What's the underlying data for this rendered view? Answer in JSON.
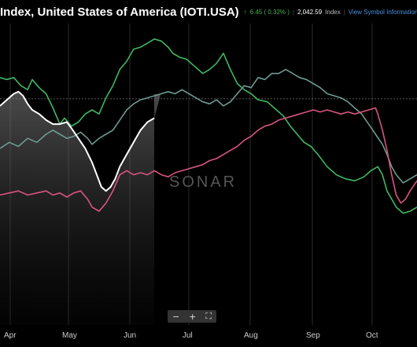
{
  "header": {
    "title": "Index, United States of America (IOTI.USA)",
    "change": "6.45 ( 0.32% )",
    "value": "2,042.59",
    "unit": "Index",
    "link": "View Symbol Information"
  },
  "watermark": "SONAR",
  "zoom": {
    "minus": "−",
    "plus": "+",
    "fit": "⛶"
  },
  "colors": {
    "green": "#3fb860",
    "teal": "#6e9a92",
    "pink": "#d9547e",
    "white": "#ffffff",
    "grid": "#2a2a2a",
    "reference": "#777777"
  },
  "chart_data": {
    "type": "line",
    "x_ticks": [
      "Apr",
      "May",
      "Jun",
      "Jul",
      "Aug",
      "Sep",
      "Oct"
    ],
    "y_axis": {
      "visible": false,
      "normalized_range": [
        0,
        100
      ]
    },
    "note_reference": "dashed horizontal reference line",
    "shaded_region": {
      "from": "start",
      "to": "mid-Jun",
      "series": "white"
    },
    "series": [
      {
        "color": "green",
        "values": [
          [
            0,
            78
          ],
          [
            3,
            77
          ],
          [
            6,
            78
          ],
          [
            9,
            74
          ],
          [
            12,
            72
          ],
          [
            14,
            77
          ],
          [
            17,
            73
          ],
          [
            20,
            70
          ],
          [
            23,
            63
          ],
          [
            26,
            55
          ],
          [
            28,
            58
          ],
          [
            31,
            54
          ],
          [
            34,
            56
          ],
          [
            37,
            60
          ],
          [
            40,
            62
          ],
          [
            43,
            60
          ],
          [
            46,
            68
          ],
          [
            49,
            74
          ],
          [
            52,
            82
          ],
          [
            55,
            86
          ],
          [
            58,
            92
          ],
          [
            61,
            93
          ],
          [
            64,
            95
          ],
          [
            67,
            97
          ],
          [
            70,
            96
          ],
          [
            73,
            93
          ],
          [
            75,
            90
          ],
          [
            78,
            88
          ],
          [
            81,
            87
          ],
          [
            84,
            84
          ],
          [
            86,
            82
          ],
          [
            88,
            80
          ],
          [
            91,
            82
          ],
          [
            94,
            85
          ],
          [
            97,
            90
          ],
          [
            100,
            82
          ],
          [
            103,
            75
          ],
          [
            106,
            72
          ],
          [
            109,
            70
          ],
          [
            112,
            67
          ],
          [
            116,
            66
          ],
          [
            120,
            62
          ],
          [
            123,
            59
          ],
          [
            126,
            54
          ],
          [
            129,
            50
          ],
          [
            132,
            46
          ],
          [
            135,
            44
          ],
          [
            138,
            40
          ],
          [
            142,
            34
          ],
          [
            146,
            30
          ],
          [
            150,
            28
          ],
          [
            154,
            27
          ],
          [
            158,
            29
          ],
          [
            161,
            32
          ],
          [
            164,
            34
          ],
          [
            166,
            30
          ],
          [
            168,
            22
          ],
          [
            170,
            18
          ],
          [
            172,
            14
          ],
          [
            175,
            11
          ],
          [
            178,
            12
          ],
          [
            181,
            14
          ]
        ]
      },
      {
        "color": "teal",
        "values": [
          [
            0,
            43
          ],
          [
            4,
            46
          ],
          [
            8,
            44
          ],
          [
            12,
            48
          ],
          [
            16,
            46
          ],
          [
            20,
            50
          ],
          [
            23,
            52
          ],
          [
            26,
            50
          ],
          [
            29,
            48
          ],
          [
            32,
            49
          ],
          [
            35,
            51
          ],
          [
            38,
            48
          ],
          [
            40,
            45
          ],
          [
            43,
            48
          ],
          [
            46,
            50
          ],
          [
            49,
            52
          ],
          [
            52,
            57
          ],
          [
            55,
            62
          ],
          [
            58,
            65
          ],
          [
            61,
            67
          ],
          [
            64,
            68
          ],
          [
            67,
            69
          ],
          [
            70,
            70
          ],
          [
            73,
            71
          ],
          [
            76,
            70
          ],
          [
            79,
            72
          ],
          [
            82,
            70
          ],
          [
            85,
            68
          ],
          [
            88,
            66
          ],
          [
            91,
            65
          ],
          [
            94,
            67
          ],
          [
            97,
            64
          ],
          [
            100,
            66
          ],
          [
            103,
            70
          ],
          [
            106,
            74
          ],
          [
            109,
            73
          ],
          [
            112,
            78
          ],
          [
            115,
            77
          ],
          [
            118,
            80
          ],
          [
            121,
            80
          ],
          [
            124,
            82
          ],
          [
            127,
            80
          ],
          [
            130,
            78
          ],
          [
            133,
            77
          ],
          [
            136,
            75
          ],
          [
            139,
            73
          ],
          [
            142,
            70
          ],
          [
            145,
            69
          ],
          [
            148,
            68
          ],
          [
            151,
            66
          ],
          [
            154,
            63
          ],
          [
            157,
            60
          ],
          [
            160,
            55
          ],
          [
            163,
            50
          ],
          [
            166,
            45
          ],
          [
            168,
            40
          ],
          [
            170,
            34
          ],
          [
            172,
            30
          ],
          [
            175,
            26
          ],
          [
            178,
            28
          ],
          [
            181,
            30
          ]
        ]
      },
      {
        "color": "pink",
        "values": [
          [
            0,
            20
          ],
          [
            4,
            21
          ],
          [
            8,
            22
          ],
          [
            12,
            20
          ],
          [
            16,
            21
          ],
          [
            20,
            22
          ],
          [
            23,
            20
          ],
          [
            26,
            21
          ],
          [
            29,
            19
          ],
          [
            32,
            21
          ],
          [
            35,
            22
          ],
          [
            38,
            18
          ],
          [
            40,
            14
          ],
          [
            43,
            12
          ],
          [
            46,
            16
          ],
          [
            49,
            22
          ],
          [
            52,
            30
          ],
          [
            55,
            32
          ],
          [
            58,
            30
          ],
          [
            61,
            31
          ],
          [
            64,
            30
          ],
          [
            67,
            32
          ],
          [
            70,
            30
          ],
          [
            73,
            29
          ],
          [
            76,
            31
          ],
          [
            79,
            32
          ],
          [
            82,
            33
          ],
          [
            85,
            34
          ],
          [
            88,
            35
          ],
          [
            91,
            37
          ],
          [
            94,
            38
          ],
          [
            97,
            40
          ],
          [
            100,
            42
          ],
          [
            103,
            44
          ],
          [
            106,
            47
          ],
          [
            109,
            49
          ],
          [
            112,
            52
          ],
          [
            115,
            54
          ],
          [
            118,
            55
          ],
          [
            121,
            57
          ],
          [
            124,
            58
          ],
          [
            127,
            59
          ],
          [
            130,
            60
          ],
          [
            133,
            61
          ],
          [
            136,
            62
          ],
          [
            139,
            61
          ],
          [
            142,
            62
          ],
          [
            145,
            61
          ],
          [
            148,
            60
          ],
          [
            151,
            61
          ],
          [
            154,
            60
          ],
          [
            157,
            61
          ],
          [
            160,
            62
          ],
          [
            163,
            63
          ],
          [
            164,
            60
          ],
          [
            166,
            52
          ],
          [
            168,
            42
          ],
          [
            170,
            30
          ],
          [
            172,
            20
          ],
          [
            174,
            16
          ],
          [
            176,
            18
          ],
          [
            178,
            22
          ],
          [
            181,
            27
          ]
        ]
      },
      {
        "color": "white",
        "values": [
          [
            0,
            64
          ],
          [
            3,
            67
          ],
          [
            6,
            70
          ],
          [
            8,
            71
          ],
          [
            10,
            69
          ],
          [
            12,
            65
          ],
          [
            14,
            62
          ],
          [
            17,
            60
          ],
          [
            20,
            57
          ],
          [
            23,
            55
          ],
          [
            26,
            55
          ],
          [
            29,
            56
          ],
          [
            31,
            53
          ],
          [
            34,
            48
          ],
          [
            37,
            43
          ],
          [
            40,
            36
          ],
          [
            42,
            30
          ],
          [
            44,
            24
          ],
          [
            46,
            22
          ],
          [
            48,
            24
          ],
          [
            50,
            28
          ],
          [
            52,
            34
          ],
          [
            55,
            40
          ],
          [
            58,
            46
          ],
          [
            61,
            52
          ],
          [
            64,
            56
          ],
          [
            67,
            58
          ]
        ]
      }
    ],
    "reference_line_value": 67.5
  }
}
